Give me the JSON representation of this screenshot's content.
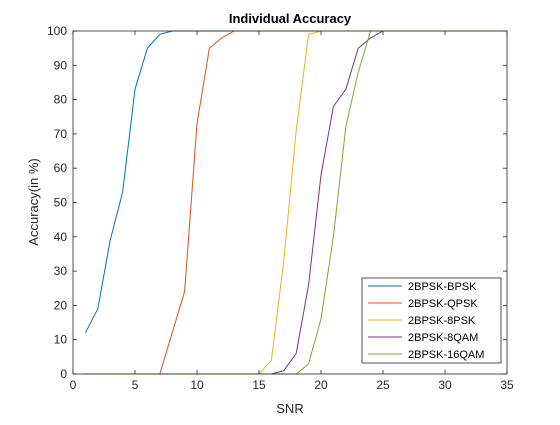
{
  "chart_data": {
    "type": "line",
    "title": "Individual Accuracy",
    "xlabel": "SNR",
    "ylabel": "Accuracy(in %)",
    "xlim": [
      0,
      35
    ],
    "ylim": [
      0,
      100
    ],
    "xticks": [
      0,
      5,
      10,
      15,
      20,
      25,
      30,
      35
    ],
    "yticks": [
      0,
      10,
      20,
      30,
      40,
      50,
      60,
      70,
      80,
      90,
      100
    ],
    "grid": false,
    "legend_position": "bottom-right",
    "series": [
      {
        "name": "2BPSK-BPSK",
        "color": "#0072BD",
        "x": [
          1,
          2,
          3,
          4,
          5,
          6,
          7,
          8,
          9,
          10,
          35
        ],
        "y": [
          12,
          19,
          39,
          53,
          83,
          95,
          99,
          100,
          100,
          100,
          100
        ]
      },
      {
        "name": "2BPSK-QPSK",
        "color": "#D95319",
        "x": [
          1,
          7,
          8,
          9,
          10,
          11,
          12,
          13,
          14,
          35
        ],
        "y": [
          0,
          0,
          12,
          24,
          73,
          95,
          98,
          100,
          100,
          100
        ]
      },
      {
        "name": "2BPSK-8PSK",
        "color": "#EDB120",
        "x": [
          1,
          15,
          16,
          17,
          18,
          19,
          20,
          35
        ],
        "y": [
          0,
          0,
          4,
          33,
          71,
          99,
          100,
          100
        ]
      },
      {
        "name": "2BPSK-8QAM",
        "color": "#7E2F8E",
        "x": [
          1,
          16,
          17,
          18,
          19,
          20,
          21,
          22,
          23,
          24,
          25,
          35
        ],
        "y": [
          0,
          0,
          1,
          6,
          26,
          58,
          78,
          83,
          95,
          98,
          100,
          100
        ]
      },
      {
        "name": "2BPSK-16QAM",
        "color": "#77AC30",
        "x": [
          1,
          18,
          19,
          20,
          21,
          22,
          23,
          24,
          25,
          35
        ],
        "y": [
          0,
          0,
          3,
          16,
          40,
          72,
          88,
          100,
          100,
          100
        ]
      }
    ]
  }
}
